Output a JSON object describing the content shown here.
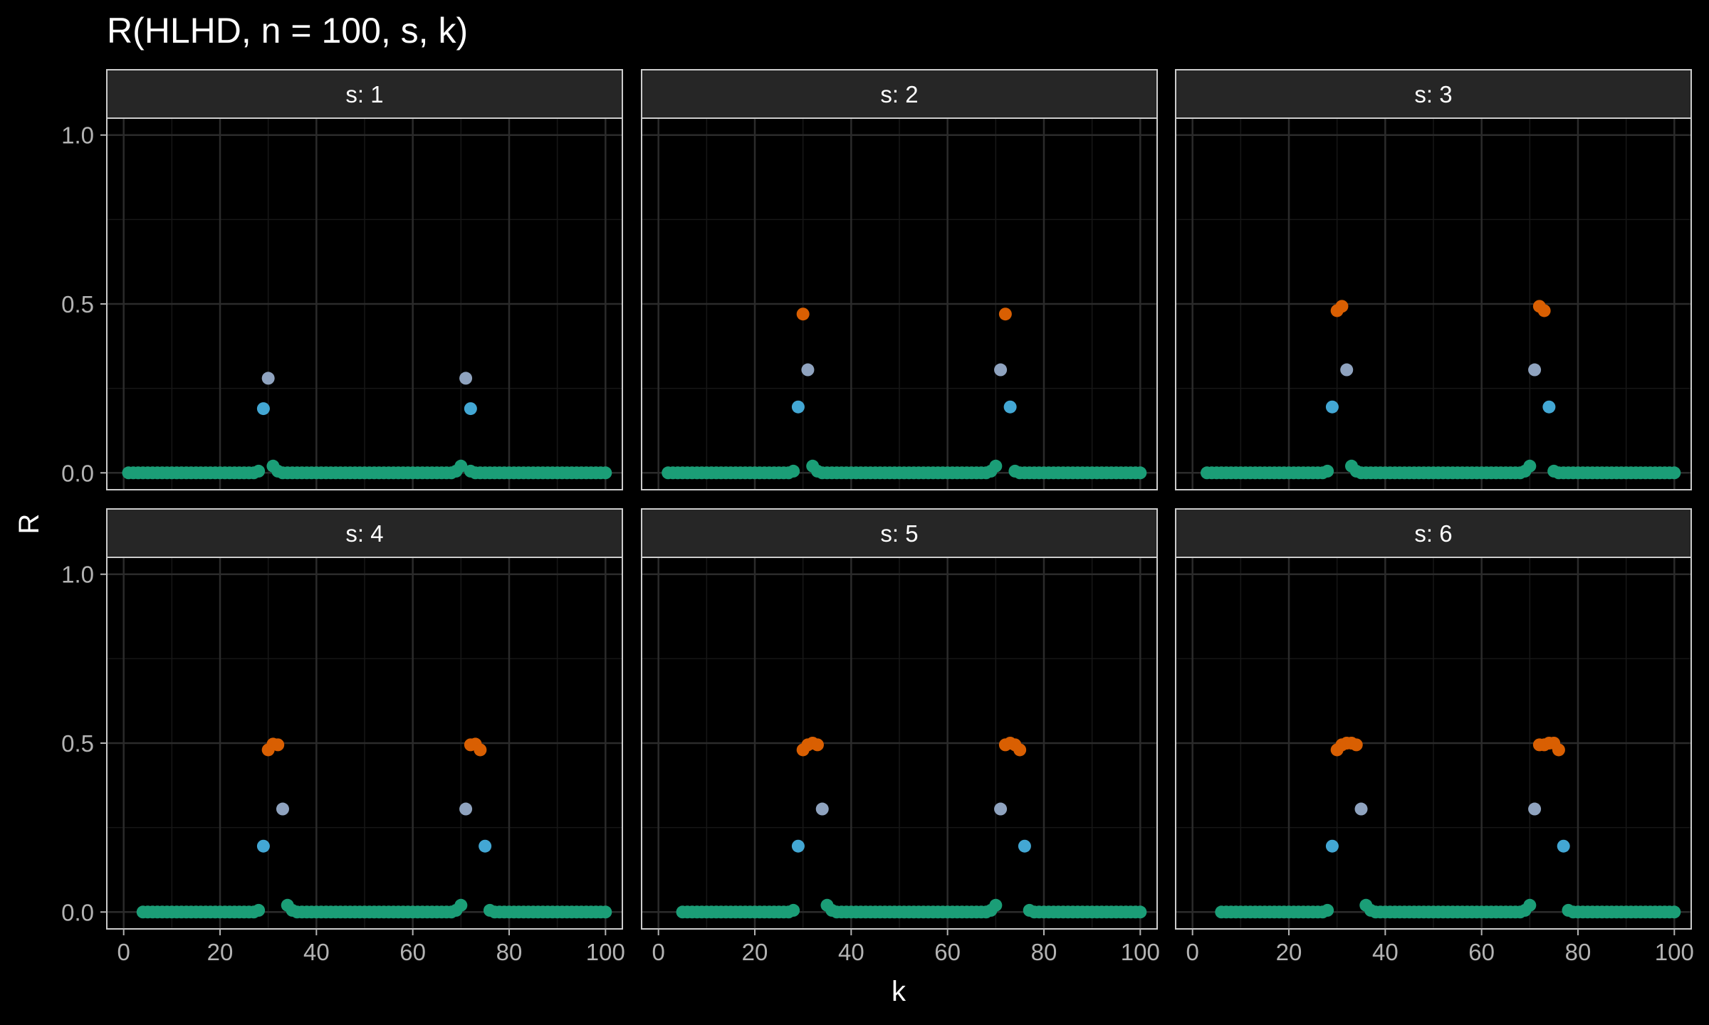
{
  "chart_data": {
    "type": "scatter",
    "title": "R(HLHD, n = 100, s, k)",
    "xlabel": "k",
    "ylabel": "R",
    "xlim": [
      -3.5,
      103.5
    ],
    "ylim": [
      -0.05,
      1.05
    ],
    "x_ticks": [
      0,
      20,
      40,
      60,
      80,
      100
    ],
    "x_tick_labels": [
      "0",
      "20",
      "40",
      "60",
      "80",
      "100"
    ],
    "y_ticks": [
      0.0,
      0.5,
      1.0
    ],
    "y_tick_labels": [
      "0.0",
      "0.5",
      "1.0"
    ],
    "grid": true,
    "legend": "none",
    "colors": {
      "background": "#000000",
      "panel_border": "#cccccc",
      "strip_fill": "#262626",
      "grid_major": "#2b2b2b",
      "grid_minor": "#171717",
      "point_zero": "#1b9e77",
      "point_small": "#43a7d4",
      "point_mid": "#8fa3bf",
      "point_high": "#d95f02"
    },
    "panels": [
      {
        "strip": "s: 1",
        "points": {
          "zero_x_range": [
            1,
            100
          ],
          "zero_excluded": [
            29,
            30,
            70,
            71
          ],
          "near_zero": [
            [
              28,
              0.005
            ],
            [
              31,
              0.02
            ],
            [
              32,
              0.005
            ],
            [
              69,
              0.005
            ],
            [
              70,
              0.02
            ],
            [
              72,
              0.005
            ]
          ],
          "small": [
            [
              29,
              0.19
            ],
            [
              72,
              0.19
            ]
          ],
          "mid": [
            [
              30,
              0.28
            ],
            [
              71,
              0.28
            ]
          ],
          "high": []
        }
      },
      {
        "strip": "s: 2",
        "points": {
          "zero_x_range": [
            2,
            100
          ],
          "zero_excluded": [
            29,
            30,
            31,
            71,
            72,
            73
          ],
          "near_zero": [
            [
              28,
              0.005
            ],
            [
              32,
              0.02
            ],
            [
              33,
              0.005
            ],
            [
              69,
              0.005
            ],
            [
              70,
              0.02
            ],
            [
              74,
              0.005
            ]
          ],
          "small": [
            [
              29,
              0.195
            ],
            [
              73,
              0.195
            ]
          ],
          "mid": [
            [
              31,
              0.305
            ],
            [
              71,
              0.305
            ]
          ],
          "high": [
            [
              30,
              0.47
            ],
            [
              72,
              0.47
            ]
          ]
        }
      },
      {
        "strip": "s: 3",
        "points": {
          "zero_x_range": [
            3,
            100
          ],
          "zero_excluded": [
            29,
            30,
            31,
            32,
            71,
            72,
            73,
            74
          ],
          "near_zero": [
            [
              28,
              0.005
            ],
            [
              33,
              0.02
            ],
            [
              34,
              0.005
            ],
            [
              69,
              0.005
            ],
            [
              70,
              0.02
            ],
            [
              75,
              0.005
            ]
          ],
          "small": [
            [
              29,
              0.195
            ],
            [
              74,
              0.195
            ]
          ],
          "mid": [
            [
              32,
              0.305
            ],
            [
              71,
              0.305
            ]
          ],
          "high": [
            [
              30,
              0.48
            ],
            [
              31,
              0.493
            ],
            [
              72,
              0.493
            ],
            [
              73,
              0.48
            ]
          ]
        }
      },
      {
        "strip": "s: 4",
        "points": {
          "zero_x_range": [
            4,
            100
          ],
          "zero_excluded": [
            29,
            30,
            31,
            32,
            33,
            71,
            72,
            73,
            74,
            75
          ],
          "near_zero": [
            [
              28,
              0.005
            ],
            [
              34,
              0.02
            ],
            [
              35,
              0.005
            ],
            [
              69,
              0.005
            ],
            [
              70,
              0.02
            ],
            [
              76,
              0.005
            ]
          ],
          "small": [
            [
              29,
              0.195
            ],
            [
              75,
              0.195
            ]
          ],
          "mid": [
            [
              33,
              0.305
            ],
            [
              71,
              0.305
            ]
          ],
          "high": [
            [
              30,
              0.48
            ],
            [
              31,
              0.497
            ],
            [
              32,
              0.495
            ],
            [
              72,
              0.495
            ],
            [
              73,
              0.497
            ],
            [
              74,
              0.48
            ]
          ]
        }
      },
      {
        "strip": "s: 5",
        "points": {
          "zero_x_range": [
            5,
            100
          ],
          "zero_excluded": [
            29,
            30,
            31,
            32,
            33,
            34,
            71,
            72,
            73,
            74,
            75,
            76
          ],
          "near_zero": [
            [
              28,
              0.005
            ],
            [
              35,
              0.02
            ],
            [
              36,
              0.005
            ],
            [
              69,
              0.005
            ],
            [
              70,
              0.02
            ],
            [
              77,
              0.005
            ]
          ],
          "small": [
            [
              29,
              0.195
            ],
            [
              76,
              0.195
            ]
          ],
          "mid": [
            [
              34,
              0.305
            ],
            [
              71,
              0.305
            ]
          ],
          "high": [
            [
              30,
              0.48
            ],
            [
              31,
              0.495
            ],
            [
              32,
              0.5
            ],
            [
              33,
              0.495
            ],
            [
              72,
              0.495
            ],
            [
              73,
              0.5
            ],
            [
              74,
              0.495
            ],
            [
              75,
              0.48
            ]
          ]
        }
      },
      {
        "strip": "s: 6",
        "points": {
          "zero_x_range": [
            6,
            100
          ],
          "zero_excluded": [
            29,
            30,
            31,
            32,
            33,
            34,
            35,
            71,
            72,
            73,
            74,
            75,
            76,
            77
          ],
          "near_zero": [
            [
              28,
              0.005
            ],
            [
              36,
              0.02
            ],
            [
              37,
              0.005
            ],
            [
              69,
              0.005
            ],
            [
              70,
              0.02
            ],
            [
              78,
              0.005
            ]
          ],
          "small": [
            [
              29,
              0.195
            ],
            [
              77,
              0.195
            ]
          ],
          "mid": [
            [
              35,
              0.305
            ],
            [
              71,
              0.305
            ]
          ],
          "high": [
            [
              30,
              0.48
            ],
            [
              31,
              0.495
            ],
            [
              32,
              0.5
            ],
            [
              33,
              0.5
            ],
            [
              34,
              0.495
            ],
            [
              73,
              0.495
            ],
            [
              74,
              0.5
            ],
            [
              75,
              0.5
            ],
            [
              72,
              0.495
            ],
            [
              76,
              0.48
            ]
          ]
        }
      }
    ]
  }
}
